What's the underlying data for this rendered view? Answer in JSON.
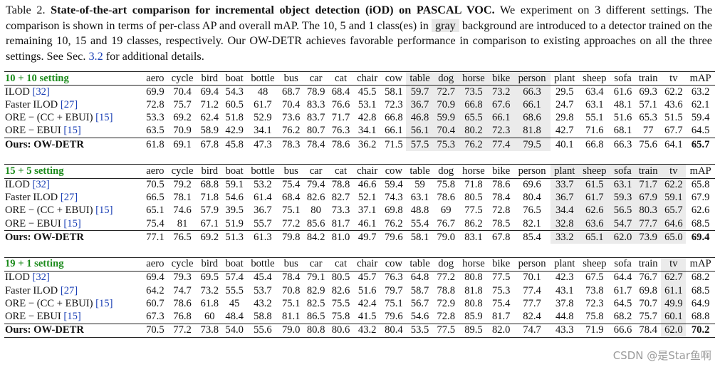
{
  "caption": {
    "label": "Table 2.",
    "bold": "State-of-the-art comparison for incremental object detection (iOD) on PASCAL VOC.",
    "text1": "We experiment on 3 different settings. The comparison is shown in terms of per-class AP and overall mAP. The 10, 5 and 1 class(es) in",
    "highlight": "gray",
    "text2": "background are introduced to a detector trained on the remaining 10, 15 and 19 classes, respectively. Our OW-DETR achieves favorable performance in comparison to existing approaches on all the three settings. See Sec.",
    "link": "3.2",
    "text3": "for additional details."
  },
  "table": {
    "columns": [
      "aero",
      "cycle",
      "bird",
      "boat",
      "bottle",
      "bus",
      "car",
      "cat",
      "chair",
      "cow",
      "table",
      "dog",
      "horse",
      "bike",
      "person",
      "plant",
      "sheep",
      "sofa",
      "train",
      "tv",
      "mAP"
    ],
    "sections": [
      {
        "setting": "10 + 10 setting",
        "rows": [
          {
            "method": "ILOD",
            "ref": "[32]",
            "values": [
              "69.9",
              "70.4",
              "69.4",
              "54.3",
              "48",
              "68.7",
              "78.9",
              "68.4",
              "45.5",
              "58.1",
              "59.7",
              "72.7",
              "73.5",
              "73.2",
              "66.3",
              "29.5",
              "63.4",
              "61.6",
              "69.3",
              "62.2",
              "63.2"
            ]
          },
          {
            "method": "Faster ILOD",
            "ref": "[27]",
            "values": [
              "72.8",
              "75.7",
              "71.2",
              "60.5",
              "61.7",
              "70.4",
              "83.3",
              "76.6",
              "53.1",
              "72.3",
              "36.7",
              "70.9",
              "66.8",
              "67.6",
              "66.1",
              "24.7",
              "63.1",
              "48.1",
              "57.1",
              "43.6",
              "62.1"
            ]
          },
          {
            "method": "ORE − (CC + EBUI)",
            "ref": "[15]",
            "values": [
              "53.3",
              "69.2",
              "62.4",
              "51.8",
              "52.9",
              "73.6",
              "83.7",
              "71.7",
              "42.8",
              "66.8",
              "46.8",
              "59.9",
              "65.5",
              "66.1",
              "68.6",
              "29.8",
              "55.1",
              "51.6",
              "65.3",
              "51.5",
              "59.4"
            ]
          },
          {
            "method": "ORE − EBUI",
            "ref": "[15]",
            "values": [
              "63.5",
              "70.9",
              "58.9",
              "42.9",
              "34.1",
              "76.2",
              "80.7",
              "76.3",
              "34.1",
              "66.1",
              "56.1",
              "70.4",
              "80.2",
              "72.3",
              "81.8",
              "42.7",
              "71.6",
              "68.1",
              "77",
              "67.7",
              "64.5"
            ]
          },
          {
            "method": "Ours: OW-DETR",
            "values": [
              "61.8",
              "69.1",
              "67.8",
              "45.8",
              "47.3",
              "78.3",
              "78.4",
              "78.6",
              "36.2",
              "71.5",
              "57.5",
              "75.3",
              "76.2",
              "77.4",
              "79.5",
              "40.1",
              "66.8",
              "66.3",
              "75.6",
              "64.1",
              "65.7"
            ]
          }
        ]
      },
      {
        "setting": "15 + 5 setting",
        "rows": [
          {
            "method": "ILOD",
            "ref": "[32]",
            "values": [
              "70.5",
              "79.2",
              "68.8",
              "59.1",
              "53.2",
              "75.4",
              "79.4",
              "78.8",
              "46.6",
              "59.4",
              "59",
              "75.8",
              "71.8",
              "78.6",
              "69.6",
              "33.7",
              "61.5",
              "63.1",
              "71.7",
              "62.2",
              "65.8"
            ]
          },
          {
            "method": "Faster ILOD",
            "ref": "[27]",
            "values": [
              "66.5",
              "78.1",
              "71.8",
              "54.6",
              "61.4",
              "68.4",
              "82.6",
              "82.7",
              "52.1",
              "74.3",
              "63.1",
              "78.6",
              "80.5",
              "78.4",
              "80.4",
              "36.7",
              "61.7",
              "59.3",
              "67.9",
              "59.1",
              "67.9"
            ]
          },
          {
            "method": "ORE − (CC + EBUI)",
            "ref": "[15]",
            "values": [
              "65.1",
              "74.6",
              "57.9",
              "39.5",
              "36.7",
              "75.1",
              "80",
              "73.3",
              "37.1",
              "69.8",
              "48.8",
              "69",
              "77.5",
              "72.8",
              "76.5",
              "34.4",
              "62.6",
              "56.5",
              "80.3",
              "65.7",
              "62.6"
            ]
          },
          {
            "method": "ORE − EBUI",
            "ref": "[15]",
            "values": [
              "75.4",
              "81",
              "67.1",
              "51.9",
              "55.7",
              "77.2",
              "85.6",
              "81.7",
              "46.1",
              "76.2",
              "55.4",
              "76.7",
              "86.2",
              "78.5",
              "82.1",
              "32.8",
              "63.6",
              "54.7",
              "77.7",
              "64.6",
              "68.5"
            ]
          },
          {
            "method": "Ours: OW-DETR",
            "values": [
              "77.1",
              "76.5",
              "69.2",
              "51.3",
              "61.3",
              "79.8",
              "84.2",
              "81.0",
              "49.7",
              "79.6",
              "58.1",
              "79.0",
              "83.1",
              "67.8",
              "85.4",
              "33.2",
              "65.1",
              "62.0",
              "73.9",
              "65.0",
              "69.4"
            ]
          }
        ]
      },
      {
        "setting": "19 + 1 setting",
        "rows": [
          {
            "method": "ILOD",
            "ref": "[32]",
            "values": [
              "69.4",
              "79.3",
              "69.5",
              "57.4",
              "45.4",
              "78.4",
              "79.1",
              "80.5",
              "45.7",
              "76.3",
              "64.8",
              "77.2",
              "80.8",
              "77.5",
              "70.1",
              "42.3",
              "67.5",
              "64.4",
              "76.7",
              "62.7",
              "68.2"
            ]
          },
          {
            "method": "Faster ILOD",
            "ref": "[27]",
            "values": [
              "64.2",
              "74.7",
              "73.2",
              "55.5",
              "53.7",
              "70.8",
              "82.9",
              "82.6",
              "51.6",
              "79.7",
              "58.7",
              "78.8",
              "81.8",
              "75.3",
              "77.4",
              "43.1",
              "73.8",
              "61.7",
              "69.8",
              "61.1",
              "68.5"
            ]
          },
          {
            "method": "ORE − (CC + EBUI)",
            "ref": "[15]",
            "values": [
              "60.7",
              "78.6",
              "61.8",
              "45",
              "43.2",
              "75.1",
              "82.5",
              "75.5",
              "42.4",
              "75.1",
              "56.7",
              "72.9",
              "80.8",
              "75.4",
              "77.7",
              "37.8",
              "72.3",
              "64.5",
              "70.7",
              "49.9",
              "64.9"
            ]
          },
          {
            "method": "ORE − EBUI",
            "ref": "[15]",
            "values": [
              "67.3",
              "76.8",
              "60",
              "48.4",
              "58.8",
              "81.1",
              "86.5",
              "75.8",
              "41.5",
              "79.6",
              "54.6",
              "72.8",
              "85.9",
              "81.7",
              "82.4",
              "44.8",
              "75.8",
              "68.2",
              "75.7",
              "60.1",
              "68.8"
            ]
          },
          {
            "method": "Ours: OW-DETR",
            "values": [
              "70.5",
              "77.2",
              "73.8",
              "54.0",
              "55.6",
              "79.0",
              "80.8",
              "80.6",
              "43.2",
              "80.4",
              "53.5",
              "77.5",
              "89.5",
              "82.0",
              "74.7",
              "43.3",
              "71.9",
              "66.6",
              "78.4",
              "62.0",
              "70.2"
            ]
          }
        ]
      }
    ]
  },
  "watermark": "CSDN @是Star鱼啊"
}
